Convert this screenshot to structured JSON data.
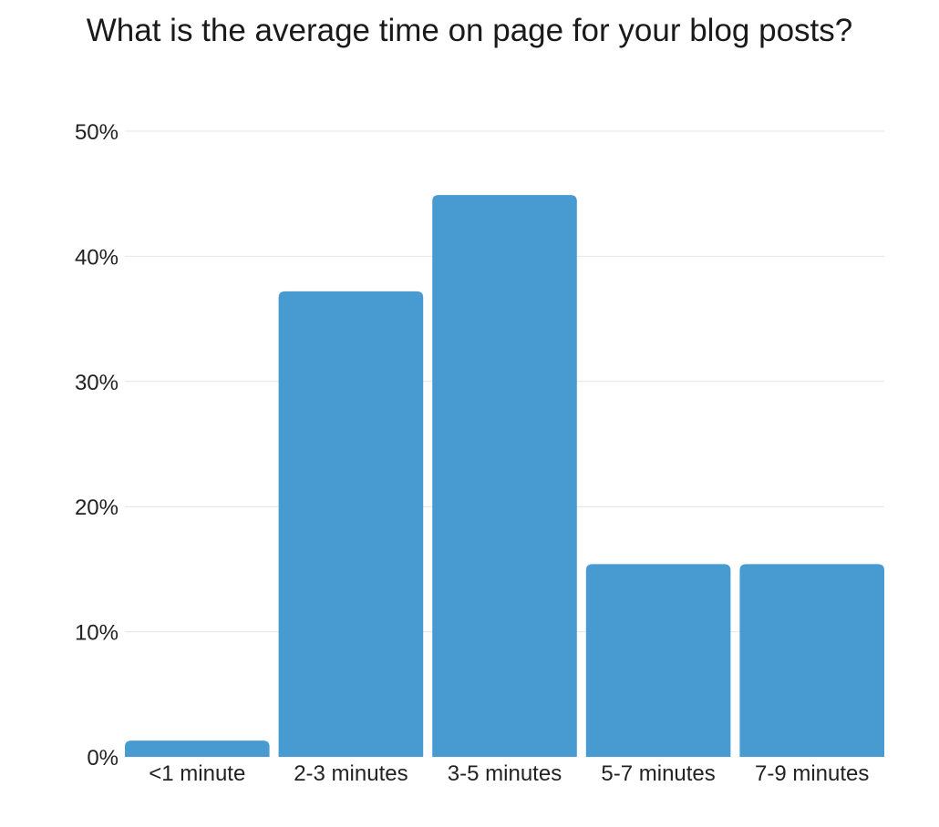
{
  "chart_data": {
    "type": "bar",
    "title": "What is the average time on page for your blog posts?",
    "categories": [
      "<1 minute",
      "2-3 minutes",
      "3-5 minutes",
      "5-7 minutes",
      "7-9 minutes"
    ],
    "values": [
      1.3,
      37.2,
      44.9,
      15.4,
      15.4
    ],
    "ylim": [
      0,
      50
    ],
    "yticks": [
      0,
      10,
      20,
      30,
      40,
      50
    ],
    "ytick_labels": [
      "0%",
      "10%",
      "20%",
      "30%",
      "40%",
      "50%"
    ],
    "xlabel": "",
    "ylabel": "",
    "grid": true,
    "legend": "none",
    "bar_color": "#479bd1"
  }
}
